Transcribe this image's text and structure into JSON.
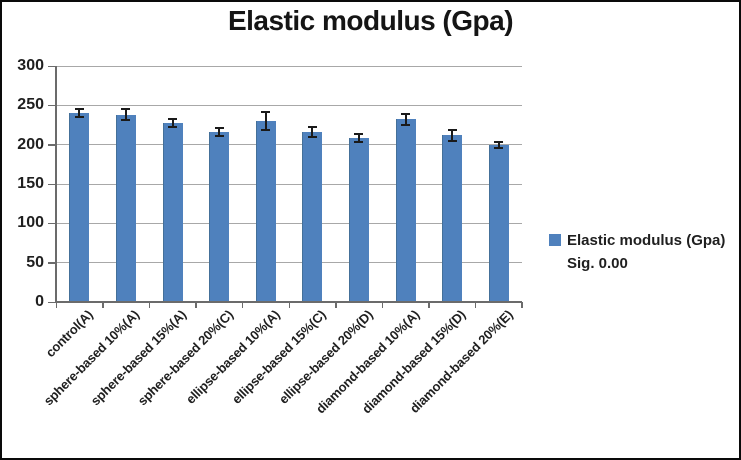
{
  "title": "Elastic modulus (Gpa)",
  "legend": {
    "label": "Elastic modulus (Gpa)",
    "sublabel": "Sig. 0.00"
  },
  "colors": {
    "bar": "#4f81bd",
    "bar_edge": "#447099",
    "gridline": "#a8a8a8",
    "axis": "#6b6b6b",
    "error_bar": "#1a1a1a",
    "tick_text": "#1f1f1f",
    "title_text": "#151515",
    "border": "#0a0a0a",
    "background": "#ffffff"
  },
  "chart_data": {
    "type": "bar",
    "title": "Elastic modulus (Gpa)",
    "categories": [
      "control(A)",
      "sphere-based 10%(A)",
      "sphere-based 15%(A)",
      "sphere-based 20%(C)",
      "ellipse-based 10%(A)",
      "ellipse-based 15%(C)",
      "ellipse-based 20%(D)",
      "diamond-based 10%(A)",
      "diamond-based 15%(D)",
      "diamond-based 20%(E)"
    ],
    "series": [
      {
        "name": "Elastic modulus (Gpa)",
        "values": [
          240,
          238,
          228,
          216,
          230,
          216,
          209,
          232,
          212,
          200
        ],
        "error_bars": [
          5,
          7,
          5,
          5,
          11,
          6,
          5,
          7,
          7,
          4
        ]
      }
    ],
    "xlabel": "",
    "ylabel": "",
    "ylim": [
      0,
      300
    ],
    "yticks": [
      0,
      50,
      100,
      150,
      200,
      250,
      300
    ],
    "grid": true,
    "x_tick_rotation": -45,
    "legend_position": "right",
    "legend_note": "Sig. 0.00"
  }
}
